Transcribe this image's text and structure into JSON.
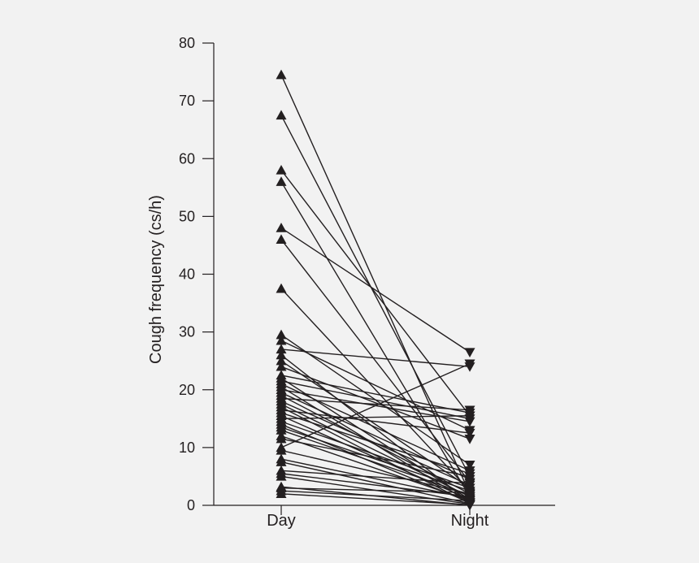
{
  "chart_data": {
    "type": "line",
    "ylabel": "Cough frequency (cs/h)",
    "ylim": [
      0,
      80
    ],
    "yticks": [
      0,
      10,
      20,
      30,
      40,
      50,
      60,
      70,
      80
    ],
    "categories": [
      "Day",
      "Night"
    ],
    "grid": false,
    "legend": "none",
    "colors": {
      "background": "#f2f2f2",
      "ink": "#231f20"
    },
    "markers": {
      "Day": "triangle-up",
      "Night": "triangle-down"
    },
    "pairs": [
      [
        74.5,
        2.0
      ],
      [
        67.5,
        5.0
      ],
      [
        58.0,
        15.5
      ],
      [
        56.0,
        1.5
      ],
      [
        48.0,
        26.5
      ],
      [
        46.0,
        4.0
      ],
      [
        37.5,
        2.5
      ],
      [
        29.5,
        7.0
      ],
      [
        28.5,
        13.0
      ],
      [
        27.0,
        24.0
      ],
      [
        26.0,
        0.5
      ],
      [
        25.0,
        3.0
      ],
      [
        24.0,
        11.5
      ],
      [
        22.5,
        16.0
      ],
      [
        22.0,
        1.0
      ],
      [
        21.5,
        15.0
      ],
      [
        21.0,
        6.0
      ],
      [
        20.5,
        0.5
      ],
      [
        20.0,
        14.5
      ],
      [
        19.5,
        4.5
      ],
      [
        19.0,
        2.0
      ],
      [
        18.5,
        16.5
      ],
      [
        18.0,
        3.5
      ],
      [
        17.5,
        1.5
      ],
      [
        17.0,
        0.3
      ],
      [
        16.5,
        12.5
      ],
      [
        16.0,
        5.5
      ],
      [
        15.5,
        1.0
      ],
      [
        15.0,
        15.5
      ],
      [
        14.5,
        3.0
      ],
      [
        14.0,
        0.5
      ],
      [
        13.5,
        2.5
      ],
      [
        13.0,
        1.8
      ],
      [
        12.0,
        0.8
      ],
      [
        11.5,
        5.0
      ],
      [
        10.0,
        24.5
      ],
      [
        9.5,
        2.0
      ],
      [
        8.0,
        1.2
      ],
      [
        7.5,
        0.3
      ],
      [
        6.0,
        3.8
      ],
      [
        5.5,
        1.5
      ],
      [
        5.0,
        0.2
      ],
      [
        3.0,
        2.2
      ],
      [
        2.5,
        0.8
      ],
      [
        2.0,
        0.1
      ],
      [
        3.2,
        0.0
      ]
    ]
  }
}
